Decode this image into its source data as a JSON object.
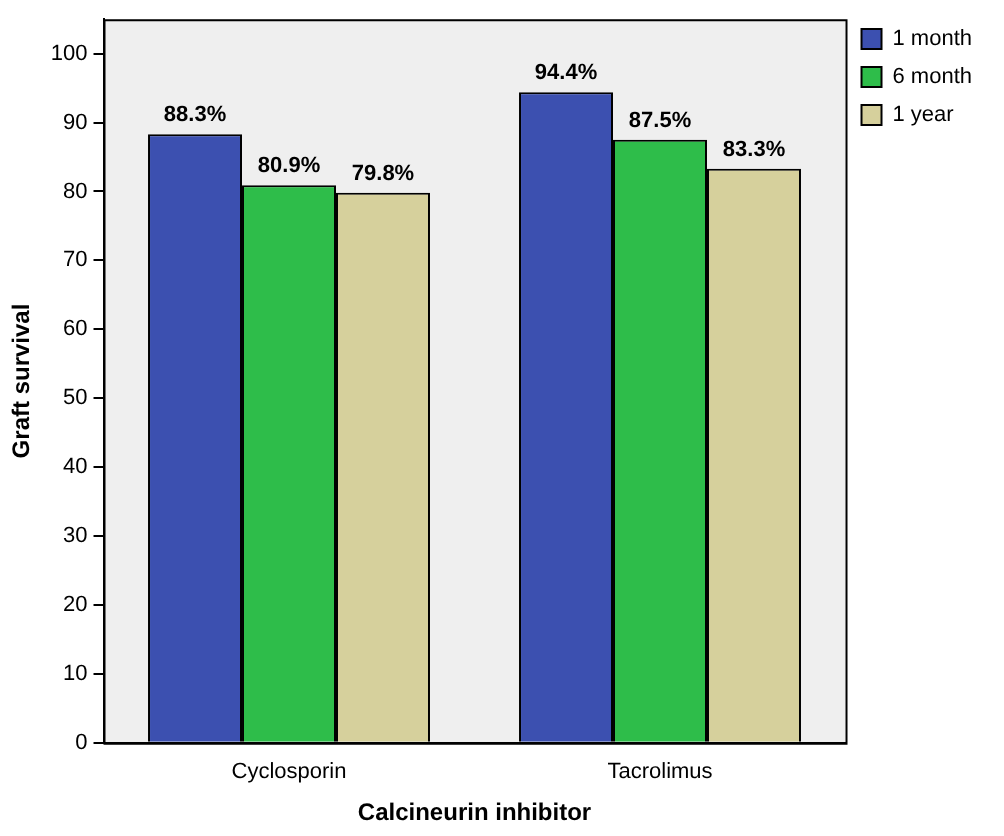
{
  "chart_data": {
    "type": "bar",
    "xlabel": "Calcineurin inhibitor",
    "ylabel": "Graft survival",
    "categories": [
      "Cyclosporin",
      "Tacrolimus"
    ],
    "series": [
      {
        "name": "1 month",
        "color": "#3c50b0",
        "values": [
          88.3,
          94.4
        ],
        "value_labels": [
          "88.3%",
          "94.4%"
        ]
      },
      {
        "name": "6 month",
        "color": "#2ebd4a",
        "values": [
          80.9,
          87.5
        ],
        "value_labels": [
          "80.9%",
          "87.5%"
        ]
      },
      {
        "name": "1 year",
        "color": "#d6d09c",
        "values": [
          79.8,
          83.3
        ],
        "value_labels": [
          "79.8%",
          "83.3%"
        ]
      }
    ],
    "ylim": [
      0,
      105
    ],
    "yticks": [
      0,
      10,
      20,
      30,
      40,
      50,
      60,
      70,
      80,
      90,
      100
    ],
    "grid": false,
    "legend": "top right"
  }
}
